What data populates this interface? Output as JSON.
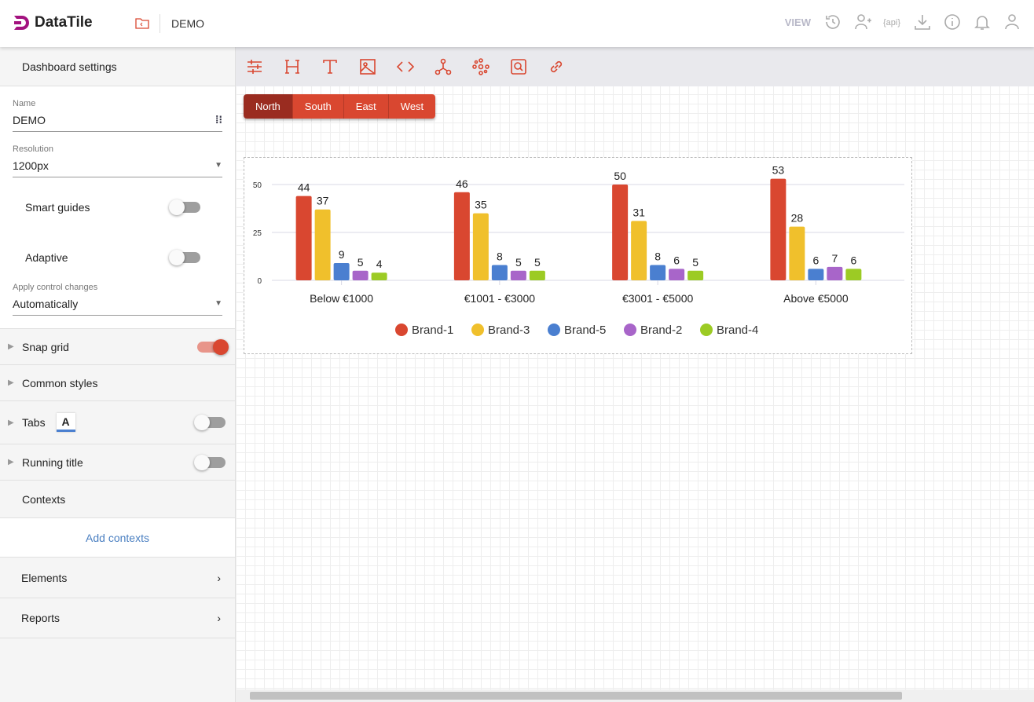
{
  "header": {
    "brand": "DataTile",
    "breadcrumb": "DEMO",
    "view_label": "VIEW",
    "icons": [
      "history-icon",
      "add-user-icon",
      "api-icon",
      "download-icon",
      "info-icon",
      "bell-icon",
      "user-icon"
    ]
  },
  "sidebar": {
    "title": "Dashboard settings",
    "name_label": "Name",
    "name_value": "DEMO",
    "resolution_label": "Resolution",
    "resolution_value": "1200px",
    "smart_guides": "Smart guides",
    "smart_guides_on": false,
    "adaptive": "Adaptive",
    "adaptive_on": false,
    "apply_label": "Apply control changes",
    "apply_value": "Automatically",
    "sections": [
      {
        "label": "Snap grid",
        "toggle": true
      },
      {
        "label": "Common styles"
      },
      {
        "label": "Tabs",
        "toggle": false
      },
      {
        "label": "Running title",
        "toggle": false
      }
    ],
    "contexts": "Contexts",
    "add_contexts": "Add contexts",
    "elements": "Elements",
    "reports": "Reports"
  },
  "toolbar": {
    "icons": [
      "filter-settings-icon",
      "heading-icon",
      "text-icon",
      "image-icon",
      "code-icon",
      "graph-icon",
      "network-icon",
      "search-box-icon",
      "link-icon"
    ]
  },
  "filters": {
    "items": [
      "North",
      "South",
      "East",
      "West"
    ],
    "active": "North"
  },
  "colors": {
    "accent": "#d94730",
    "active": "#9a2c20"
  },
  "chart_data": {
    "type": "bar",
    "categories": [
      "Below €1000",
      "€1001 - €3000",
      "€3001 - €5000",
      "Above €5000"
    ],
    "ylim": [
      0,
      55
    ],
    "yticks": [
      "0",
      "25",
      "50"
    ],
    "grid": true,
    "legend": "bottom",
    "series": [
      {
        "name": "Brand-1",
        "color": "#d94730",
        "values": [
          44,
          46,
          50,
          53
        ]
      },
      {
        "name": "Brand-3",
        "color": "#f0c02c",
        "values": [
          37,
          35,
          31,
          28
        ]
      },
      {
        "name": "Brand-5",
        "color": "#4a7fd0",
        "values": [
          9,
          8,
          8,
          6
        ]
      },
      {
        "name": "Brand-2",
        "color": "#a865c9",
        "values": [
          5,
          5,
          6,
          7
        ]
      },
      {
        "name": "Brand-4",
        "color": "#9ccb24",
        "values": [
          4,
          5,
          5,
          6
        ]
      }
    ]
  }
}
